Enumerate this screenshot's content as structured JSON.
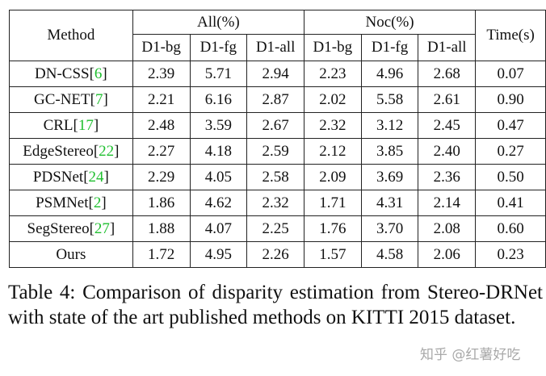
{
  "table": {
    "header_method": "Method",
    "header_all": "All(%)",
    "header_noc": "Noc(%)",
    "header_time": "Time(s)",
    "sub": [
      "D1-bg",
      "D1-fg",
      "D1-all",
      "D1-bg",
      "D1-fg",
      "D1-all"
    ],
    "rows": [
      {
        "name": "DN-CSS",
        "cite": "6",
        "v": [
          "2.39",
          "5.71",
          "2.94",
          "2.23",
          "4.96",
          "2.68"
        ],
        "time": "0.07"
      },
      {
        "name": "GC-NET",
        "cite": "7",
        "v": [
          "2.21",
          "6.16",
          "2.87",
          "2.02",
          "5.58",
          "2.61"
        ],
        "time": "0.90"
      },
      {
        "name": "CRL",
        "cite": "17",
        "v": [
          "2.48",
          "3.59",
          "2.67",
          "2.32",
          "3.12",
          "2.45"
        ],
        "time": "0.47"
      },
      {
        "name": "EdgeStereo",
        "cite": "22",
        "v": [
          "2.27",
          "4.18",
          "2.59",
          "2.12",
          "3.85",
          "2.40"
        ],
        "time": "0.27"
      },
      {
        "name": "PDSNet",
        "cite": "24",
        "v": [
          "2.29",
          "4.05",
          "2.58",
          "2.09",
          "3.69",
          "2.36"
        ],
        "time": "0.50"
      },
      {
        "name": "PSMNet",
        "cite": "2",
        "v": [
          "1.86",
          "4.62",
          "2.32",
          "1.71",
          "4.31",
          "2.14"
        ],
        "time": "0.41"
      },
      {
        "name": "SegStereo",
        "cite": "27",
        "v": [
          "1.88",
          "4.07",
          "2.25",
          "1.76",
          "3.70",
          "2.08"
        ],
        "time": "0.60"
      },
      {
        "name": "Ours",
        "cite": "",
        "v": [
          "1.72",
          "4.95",
          "2.26",
          "1.57",
          "4.58",
          "2.06"
        ],
        "time": "0.23"
      }
    ]
  },
  "caption": "Table 4: Comparison of disparity estimation from Stereo-DRNet with state of the art published methods on KITTI 2015 dataset.",
  "watermark": "知乎 @红薯好吃"
}
